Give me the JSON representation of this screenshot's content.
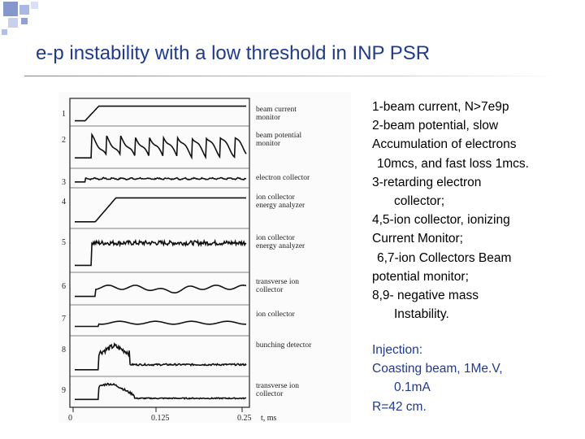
{
  "title": "e-p instability with a low threshold in INP PSR",
  "figure": {
    "row_numbers": [
      "1",
      "2",
      "3",
      "4",
      "5",
      "6",
      "7",
      "8",
      "9"
    ],
    "trace_labels": [
      [
        "beam current",
        "monitor"
      ],
      [
        "beam potential",
        "monitor"
      ],
      [
        "electron collector"
      ],
      [
        "ion collector",
        "energy analyzer"
      ],
      [
        "ion collector",
        "energy analyzer"
      ],
      [
        "transverse ion",
        "collector"
      ],
      [
        "ion collector"
      ],
      [
        "bunching detector"
      ],
      [
        "transverse ion",
        "collector"
      ]
    ],
    "x_ticks": [
      "0",
      "0.125",
      "0.25"
    ],
    "x_unit": "t, ms"
  },
  "description_lines": [
    {
      "text": "1-beam current, N>7e9p",
      "indent": 0
    },
    {
      "text": "2-beam potential, slow",
      "indent": 0
    },
    {
      "text": "Accumulation of electrons",
      "indent": 0
    },
    {
      "text": "10mcs, and fast loss 1mcs.",
      "indent": 1
    },
    {
      "text": "3-retarding electron",
      "indent": 0
    },
    {
      "text": "collector;",
      "indent": 2
    },
    {
      "text": "4,5-ion collector, ionizing",
      "indent": 0
    },
    {
      "text": "Current Monitor;",
      "indent": 0
    },
    {
      "text": "6,7-ion Collectors Beam",
      "indent": 1
    },
    {
      "text": "potential monitor;",
      "indent": 0
    },
    {
      "text": "8,9- negative mass",
      "indent": 0
    },
    {
      "text": "Instability.",
      "indent": 2
    }
  ],
  "injection_lines": [
    {
      "text": "Injection:",
      "indent": 0
    },
    {
      "text": "Coasting beam, 1Me.V,",
      "indent": 0
    },
    {
      "text": "0.1mA",
      "indent": 2
    },
    {
      "text": "R=42 cm.",
      "indent": 0
    }
  ],
  "colors": {
    "title": "#1f3a93",
    "body_text": "#000000",
    "injection_text": "#1f3a93",
    "corner_decor": "#6f86c6"
  }
}
